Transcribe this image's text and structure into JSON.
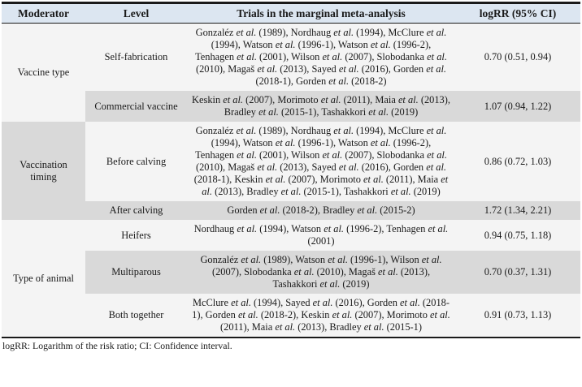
{
  "colors": {
    "header_bg": "#dce6f1",
    "shaded_row_bg": "#d9d9d9",
    "row_bg": "#f4f4f4",
    "border": "#1a1a1a",
    "text": "#1a1a1a"
  },
  "table": {
    "headers": [
      "Moderator",
      "Level",
      "Trials in the marginal meta-analysis",
      "logRR (95% CI)"
    ],
    "groups": [
      {
        "moderator": "Vaccine type"
      },
      {
        "moderator": "Vaccination timing"
      },
      {
        "moderator": "Type of animal"
      }
    ],
    "rows": [
      {
        "level": "Self-fabrication",
        "trials": "Gonzaléz et al. (1989), Nordhaug et al. (1994), McClure et al. (1994), Watson et al. (1996-1), Watson et al. (1996-2), Tenhagen et al. (2001), Wilson et al. (2007), Slobodanka et al. (2010), Magaš et al. (2013), Sayed et al. (2016), Gorden et al. (2018-1), Gorden et al. (2018-2)",
        "logrr": "0.70 (0.51, 0.94)"
      },
      {
        "level": "Commercial vaccine",
        "trials": "Keskin et al. (2007), Morimoto et al. (2011), Maia et al. (2013), Bradley et al. (2015-1), Tashakkori et al. (2019)",
        "logrr": "1.07 (0.94, 1.22)"
      },
      {
        "level": "Before calving",
        "trials": "Gonzaléz et al. (1989), Nordhaug et al. (1994), McClure et al. (1994), Watson et al. (1996-1), Watson et al. (1996-2), Tenhagen et al. (2001), Wilson et al. (2007), Slobodanka et al. (2010), Magaš et al. (2013), Sayed et al. (2016), Gorden et al. (2018-1), Keskin et al. (2007), Morimoto et al. (2011), Maia et al. (2013), Bradley et al. (2015-1), Tashakkori et al. (2019)",
        "logrr": "0.86 (0.72, 1.03)"
      },
      {
        "level": "After calving",
        "trials": "Gorden et al. (2018-2), Bradley et al. (2015-2)",
        "logrr": "1.72 (1.34, 2.21)"
      },
      {
        "level": "Heifers",
        "trials": "Nordhaug et al. (1994), Watson et al. (1996-2), Tenhagen et al. (2001)",
        "logrr": "0.94 (0.75, 1.18)"
      },
      {
        "level": "Multiparous",
        "trials": "Gonzaléz et al. (1989), Watson et al. (1996-1), Wilson et al. (2007), Slobodanka et al. (2010), Magaš et al. (2013), Tashakkori et al. (2019)",
        "logrr": "0.70 (0.37, 1.31)"
      },
      {
        "level": "Both together",
        "trials": "McClure et al. (1994), Sayed et al. (2016), Gorden et al. (2018-1), Gorden et al. (2018-2), Keskin et al. (2007), Morimoto et al. (2011), Maia et al. (2013), Bradley et al. (2015-1)",
        "logrr": "0.91 (0.73, 1.13)"
      }
    ],
    "footnote": "logRR: Logarithm of the risk ratio; CI: Confidence interval."
  }
}
